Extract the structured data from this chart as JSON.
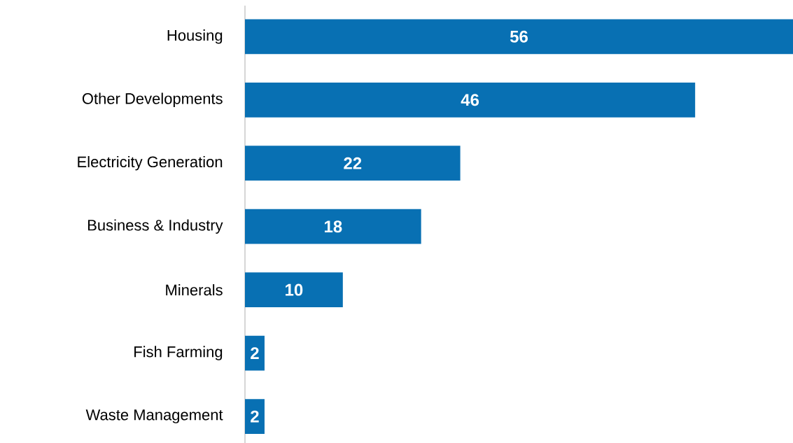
{
  "chart_data": {
    "type": "bar",
    "orientation": "horizontal",
    "categories": [
      "Housing",
      "Other Developments",
      "Electricity Generation",
      "Business & Industry",
      "Minerals",
      "Fish Farming",
      "Waste Management"
    ],
    "values": [
      56,
      46,
      22,
      18,
      10,
      2,
      2
    ],
    "color": "#0870b3",
    "data_labels": true
  }
}
